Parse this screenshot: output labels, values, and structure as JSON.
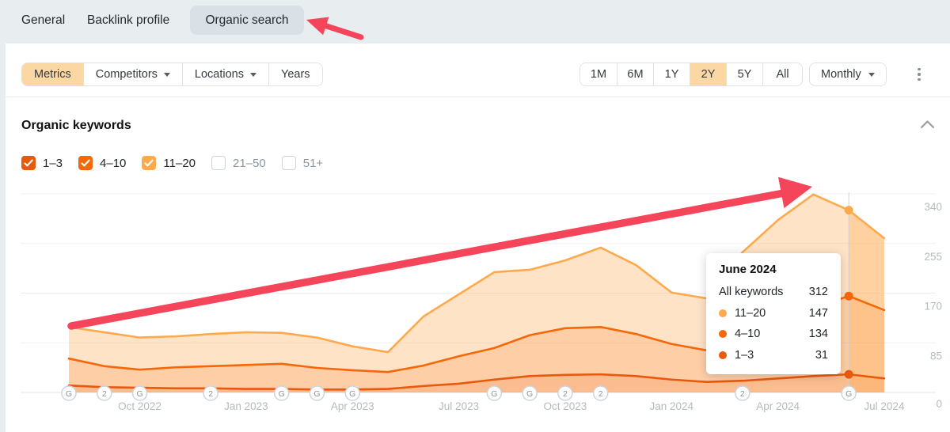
{
  "header": {
    "tabs": [
      {
        "label": "General",
        "active": false
      },
      {
        "label": "Backlink profile",
        "active": false
      },
      {
        "label": "Organic search",
        "active": true
      }
    ]
  },
  "toolbar": {
    "left_buttons": [
      {
        "label": "Metrics",
        "active": true,
        "caret": false
      },
      {
        "label": "Competitors",
        "active": false,
        "caret": true
      },
      {
        "label": "Locations",
        "active": false,
        "caret": true
      },
      {
        "label": "Years",
        "active": false,
        "caret": false
      }
    ],
    "range_buttons": [
      {
        "label": "1M",
        "active": false
      },
      {
        "label": "6M",
        "active": false
      },
      {
        "label": "1Y",
        "active": false
      },
      {
        "label": "2Y",
        "active": true
      },
      {
        "label": "5Y",
        "active": false
      },
      {
        "label": "All",
        "active": false
      }
    ],
    "granularity": {
      "label": "Monthly"
    },
    "more_menu_icon": "kebab-vertical-icon"
  },
  "panel": {
    "title": "Organic keywords",
    "collapse_icon": "chevron-up-icon"
  },
  "filters": [
    {
      "label": "1–3",
      "checked": true,
      "color": "#e8590c"
    },
    {
      "label": "4–10",
      "checked": true,
      "color": "#f76707"
    },
    {
      "label": "11–20",
      "checked": true,
      "color": "#ffa94d"
    },
    {
      "label": "21–50",
      "checked": false,
      "color": null
    },
    {
      "label": "51+",
      "checked": false,
      "color": null
    }
  ],
  "tooltip": {
    "title": "June 2024",
    "total_label": "All keywords",
    "total_value": "312",
    "rows": [
      {
        "label": "11–20",
        "value": "147",
        "color": "#ffa94d"
      },
      {
        "label": "4–10",
        "value": "134",
        "color": "#f76707"
      },
      {
        "label": "1–3",
        "value": "31",
        "color": "#e8590c"
      }
    ]
  },
  "chart_data": {
    "type": "area",
    "stacked": true,
    "title": "Organic keywords",
    "x": [
      "Aug 2022",
      "Sep 2022",
      "Oct 2022",
      "Nov 2022",
      "Dec 2022",
      "Jan 2023",
      "Feb 2023",
      "Mar 2023",
      "Apr 2023",
      "May 2023",
      "Jun 2023",
      "Jul 2023",
      "Aug 2023",
      "Sep 2023",
      "Oct 2023",
      "Nov 2023",
      "Dec 2023",
      "Jan 2024",
      "Feb 2024",
      "Mar 2024",
      "Apr 2024",
      "May 2024",
      "Jun 2024",
      "Jul 2024"
    ],
    "x_tick_indices": [
      2,
      5,
      8,
      11,
      14,
      17,
      20,
      23
    ],
    "series": [
      {
        "name": "1–3",
        "color": "#e8590c",
        "values": [
          12,
          9,
          8,
          7,
          7,
          6,
          6,
          5,
          5,
          6,
          11,
          15,
          22,
          28,
          30,
          31,
          28,
          22,
          18,
          20,
          24,
          28,
          31,
          24
        ]
      },
      {
        "name": "4–10",
        "color": "#f76707",
        "values": [
          46,
          36,
          31,
          36,
          38,
          41,
          43,
          37,
          33,
          29,
          35,
          47,
          54,
          70,
          80,
          81,
          72,
          61,
          54,
          70,
          91,
          117,
          134,
          117
        ]
      },
      {
        "name": "11–20",
        "color": "#ffa94d",
        "values": [
          54,
          58,
          55,
          53,
          55,
          56,
          53,
          52,
          41,
          34,
          84,
          106,
          130,
          112,
          116,
          136,
          118,
          88,
          89,
          150,
          180,
          194,
          147,
          123
        ]
      }
    ],
    "totals": [
      112,
      103,
      94,
      96,
      100,
      103,
      102,
      94,
      79,
      69,
      130,
      168,
      206,
      210,
      226,
      248,
      218,
      171,
      161,
      240,
      295,
      339,
      312,
      264
    ],
    "y_ticks": [
      0,
      85,
      170,
      255,
      340
    ],
    "ylim": [
      0,
      340
    ],
    "grid": true,
    "legend_position": "none",
    "hover": {
      "label": "June 2024",
      "index": 22
    },
    "annotations": [
      {
        "index": 0,
        "label": "G"
      },
      {
        "index": 1,
        "label": "2"
      },
      {
        "index": 2,
        "label": "G"
      },
      {
        "index": 4,
        "label": "2"
      },
      {
        "index": 6,
        "label": "G"
      },
      {
        "index": 7,
        "label": "G"
      },
      {
        "index": 8,
        "label": "G"
      },
      {
        "index": 12,
        "label": "G"
      },
      {
        "index": 13,
        "label": "G"
      },
      {
        "index": 14,
        "label": "2"
      },
      {
        "index": 15,
        "label": "2"
      },
      {
        "index": 19,
        "label": "2"
      },
      {
        "index": 22,
        "label": "G"
      }
    ]
  },
  "colors": {
    "accent_selected_bg": "#fbd7a4",
    "annotation_arrow": "#f4455a",
    "gridline": "#edeff2",
    "axis_line": "#dfe3e7",
    "tick_text": "#b4bac0",
    "marker_text": "#8a929a"
  }
}
